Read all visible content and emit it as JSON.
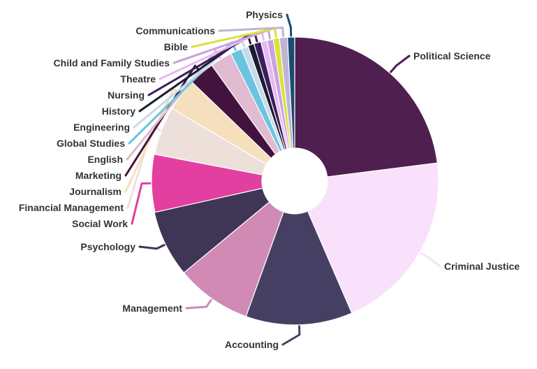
{
  "chart_data": {
    "type": "pie",
    "donut": true,
    "title": "",
    "slices": [
      {
        "label": "Political Science",
        "value": 23.0,
        "color": "#4f1f4f"
      },
      {
        "label": "Criminal Justice",
        "value": 20.5,
        "color": "#f9e0fb"
      },
      {
        "label": "Accounting",
        "value": 12.0,
        "color": "#454063"
      },
      {
        "label": "Management",
        "value": 8.5,
        "color": "#d08ab4"
      },
      {
        "label": "Psychology",
        "value": 7.5,
        "color": "#3f3656"
      },
      {
        "label": "Social Work",
        "value": 6.5,
        "color": "#e23fa1"
      },
      {
        "label": "Financial Management",
        "value": 5.5,
        "color": "#ede0da"
      },
      {
        "label": "Journalism",
        "value": 3.7,
        "color": "#f6dfbc"
      },
      {
        "label": "Marketing",
        "value": 2.9,
        "color": "#44123e"
      },
      {
        "label": "English",
        "value": 2.5,
        "color": "#e1bbd2"
      },
      {
        "label": "Global Studies",
        "value": 1.3,
        "color": "#6cc3df"
      },
      {
        "label": "Engineering",
        "value": 0.8,
        "color": "#c6dbe7"
      },
      {
        "label": "History",
        "value": 0.7,
        "color": "#1c1a33"
      },
      {
        "label": "Nursing",
        "value": 0.8,
        "color": "#3b1e5e"
      },
      {
        "label": "Theatre",
        "value": 0.7,
        "color": "#e9b8f1"
      },
      {
        "label": "Child and Family Studies",
        "value": 0.7,
        "color": "#c8a2e0"
      },
      {
        "label": "Bible",
        "value": 0.7,
        "color": "#d9e23a"
      },
      {
        "label": "Communications",
        "value": 0.9,
        "color": "#bdb4d6"
      },
      {
        "label": "Physics",
        "value": 0.8,
        "color": "#1a4c74"
      }
    ]
  }
}
